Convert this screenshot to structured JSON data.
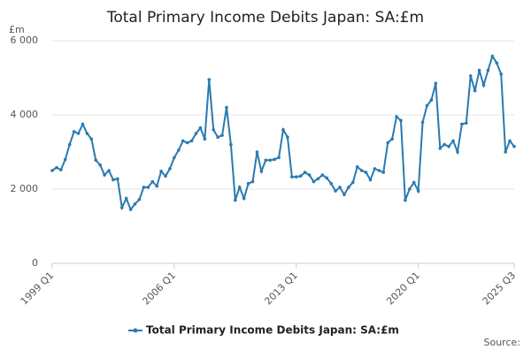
{
  "chart_data": {
    "type": "line",
    "title": "Total Primary Income Debits Japan: SA:£m",
    "y_unit": "£m",
    "source": "Source:",
    "categories": [
      "1999 Q1",
      null,
      null,
      null,
      null,
      null,
      null,
      null,
      null,
      null,
      null,
      null,
      null,
      null,
      null,
      null,
      null,
      null,
      null,
      null,
      null,
      null,
      null,
      null,
      null,
      null,
      null,
      null,
      "2006 Q1",
      null,
      null,
      null,
      null,
      null,
      null,
      null,
      null,
      null,
      null,
      null,
      null,
      null,
      null,
      null,
      null,
      null,
      null,
      null,
      null,
      null,
      null,
      null,
      null,
      null,
      null,
      null,
      "2013 Q1",
      null,
      null,
      null,
      null,
      null,
      null,
      null,
      null,
      null,
      null,
      null,
      null,
      null,
      null,
      null,
      null,
      null,
      null,
      null,
      null,
      null,
      null,
      null,
      null,
      null,
      null,
      null,
      "2020 Q1",
      null,
      null,
      null,
      null,
      null,
      null,
      null,
      null,
      null,
      null,
      null,
      null,
      null,
      null,
      null,
      null,
      null,
      null,
      null,
      null,
      null,
      "2025 Q3"
    ],
    "series": [
      {
        "name": "Total Primary Income Debits Japan: SA:£m",
        "color": "#2a7ab0",
        "values": [
          2500,
          2580,
          2520,
          2800,
          3200,
          3550,
          3500,
          3750,
          3500,
          3350,
          2780,
          2650,
          2380,
          2500,
          2250,
          2280,
          1500,
          1750,
          1450,
          1600,
          1720,
          2050,
          2050,
          2200,
          2080,
          2480,
          2350,
          2550,
          2850,
          3050,
          3300,
          3250,
          3300,
          3500,
          3650,
          3350,
          4950,
          3600,
          3400,
          3450,
          4200,
          3200,
          1700,
          2050,
          1750,
          2150,
          2200,
          3000,
          2480,
          2780,
          2780,
          2800,
          2850,
          3600,
          3400,
          2330,
          2330,
          2350,
          2450,
          2380,
          2200,
          2280,
          2380,
          2300,
          2150,
          1950,
          2050,
          1850,
          2050,
          2180,
          2600,
          2500,
          2450,
          2250,
          2550,
          2500,
          2450,
          3250,
          3350,
          3950,
          3850,
          1700,
          2000,
          2180,
          1950,
          3800,
          4250,
          4400,
          4850,
          3100,
          3200,
          3150,
          3300,
          3000,
          3750,
          3780,
          5050,
          4650,
          5200,
          4800,
          5200,
          5580,
          5400,
          5100,
          3000,
          3300,
          3150
        ]
      }
    ],
    "ylim": [
      0,
      6000
    ],
    "yticks": [
      0,
      {
        "value": 2000,
        "label": "2 000"
      },
      {
        "value": 4000,
        "label": "4 000"
      },
      {
        "value": 6000,
        "label": "6 000"
      }
    ],
    "grid": true
  }
}
